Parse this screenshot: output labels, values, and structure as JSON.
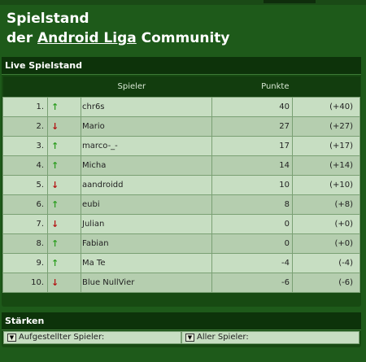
{
  "header": {
    "line1": "Spielstand",
    "line2_prefix": "der ",
    "line2_link": "Android Liga",
    "line2_suffix": " Community"
  },
  "live": {
    "title": "Live Spielstand",
    "columns": {
      "player": "Spieler",
      "points": "Punkte"
    },
    "rows": [
      {
        "rank": "1.",
        "trend": "up",
        "name": "chr6s",
        "points": "40",
        "diff": "(+40)"
      },
      {
        "rank": "2.",
        "trend": "down",
        "name": "Mario",
        "points": "27",
        "diff": "(+27)"
      },
      {
        "rank": "3.",
        "trend": "up",
        "name": "marco-_-",
        "points": "17",
        "diff": "(+17)"
      },
      {
        "rank": "4.",
        "trend": "up",
        "name": "Micha",
        "points": "14",
        "diff": "(+14)"
      },
      {
        "rank": "5.",
        "trend": "down",
        "name": "aandroidd",
        "points": "10",
        "diff": "(+10)"
      },
      {
        "rank": "6.",
        "trend": "up",
        "name": "eubi",
        "points": "8",
        "diff": "(+8)"
      },
      {
        "rank": "7.",
        "trend": "down",
        "name": "Julian",
        "points": "0",
        "diff": "(+0)"
      },
      {
        "rank": "8.",
        "trend": "up",
        "name": "Fabian",
        "points": "0",
        "diff": "(+0)"
      },
      {
        "rank": "9.",
        "trend": "up",
        "name": "Ma Te",
        "points": "-4",
        "diff": "(-4)"
      },
      {
        "rank": "10.",
        "trend": "down",
        "name": "Blue NullVier",
        "points": "-6",
        "diff": "(-6)"
      }
    ]
  },
  "strengths": {
    "title": "Stärken",
    "select_lineup": "Aufgestellter Spieler:",
    "select_all": "Aller Spieler:"
  },
  "icons": {
    "up": "arrow-up-icon",
    "down": "arrow-down-icon",
    "dropdown": "dropdown-icon"
  },
  "colors": {
    "up": "#2e9e22",
    "down": "#b41414",
    "background": "#1e5a1a"
  }
}
